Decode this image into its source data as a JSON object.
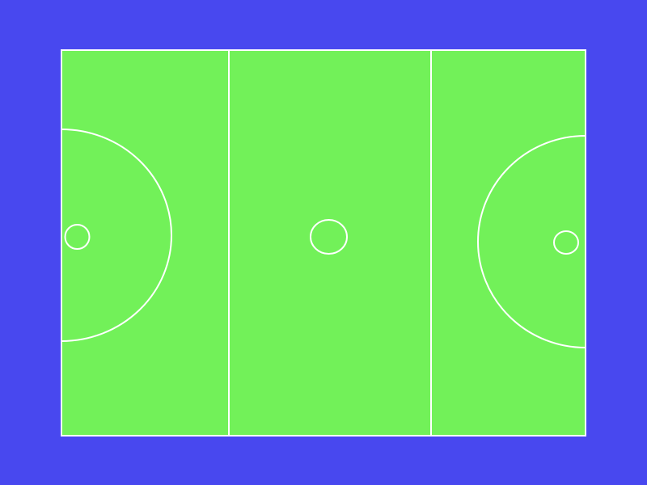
{
  "colors": {
    "background": "#4848ef",
    "court_surface": "#72f159",
    "court_lines": "#ffffff"
  },
  "court": {
    "sport": "netball",
    "thirds": [
      "left-third",
      "centre-third",
      "right-third"
    ],
    "markings": [
      "outer-boundary",
      "left-transverse-line",
      "right-transverse-line",
      "left-shooting-circle",
      "right-shooting-circle",
      "centre-circle",
      "left-goal-post",
      "right-goal-post"
    ]
  }
}
